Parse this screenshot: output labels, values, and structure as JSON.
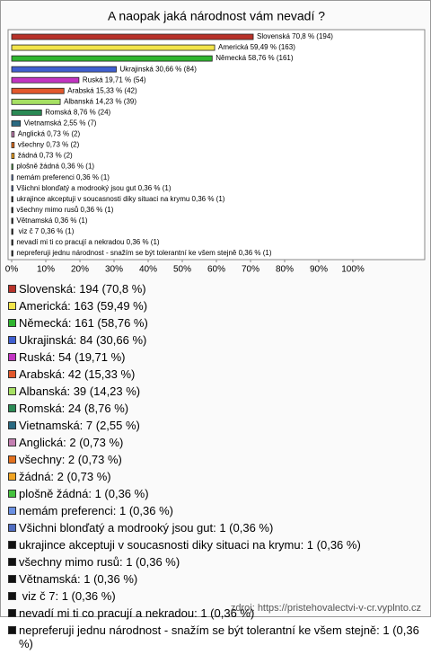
{
  "chart_data": {
    "type": "bar",
    "orientation": "horizontal",
    "title": "A naopak jaká národnost vám nevadí ?",
    "categories": [
      "Slovenská",
      "Americká",
      "Německá",
      "Ukrajinská",
      "Ruská",
      "Arabská",
      "Albanská",
      "Romská",
      "Vietnamská",
      "Anglická",
      "všechny",
      "žádná",
      "plošně žádná",
      "nemám preferenci",
      "Všichni blonďatý a modrooký jsou gut",
      "ukrajince akceptuji v soucasnosti diky situaci na krymu",
      "všechny mimo rusů",
      "Větnamská",
      " viz č 7",
      "nevadí mi ti co pracují a nekradou",
      "nepreferuji jednu národnost - snažím se být tolerantní ke všem stejně"
    ],
    "values": [
      70.8,
      59.49,
      58.76,
      30.66,
      19.71,
      15.33,
      14.23,
      8.76,
      2.55,
      0.73,
      0.73,
      0.73,
      0.36,
      0.36,
      0.36,
      0.36,
      0.36,
      0.36,
      0.36,
      0.36,
      0.36
    ],
    "value_labels": [
      "Slovenská 70,8 % (194)",
      "Americká 59,49 % (163)",
      "Německá 58,76 % (161)",
      "Ukrajinská 30,66 % (84)",
      "Ruská 19,71 % (54)",
      "Arabská 15,33 % (42)",
      "Albanská 14,23 % (39)",
      "Romská 8,76 % (24)",
      "Vietnamská 2,55 % (7)",
      "Anglická 0,73 % (2)",
      "všechny 0,73 % (2)",
      "žádná 0,73 % (2)",
      "plošně žádná 0,36 % (1)",
      "nemám preferenci 0,36 % (1)",
      "Všichni blonďatý a modrooký jsou gut 0,36 % (1)",
      "ukrajince akceptuji v soucasnosti diky situaci na krymu 0,36 % (1)",
      "všechny mimo rusů 0,36 % (1)",
      "Větnamská 0,36 % (1)",
      " viz č 7 0,36 % (1)",
      "nevadí mi ti co pracují a nekradou 0,36 % (1)",
      "nepreferuji jednu národnost - snažím se být tolerantní ke všem stejně 0,36 % (1)"
    ],
    "legend_labels": [
      "Slovenská: 194 (70,8 %)",
      "Americká: 163 (59,49 %)",
      "Německá: 161 (58,76 %)",
      "Ukrajinská: 84 (30,66 %)",
      "Ruská: 54 (19,71 %)",
      "Arabská: 42 (15,33 %)",
      "Albanská: 39 (14,23 %)",
      "Romská: 24 (8,76 %)",
      "Vietnamská: 7 (2,55 %)",
      "Anglická: 2 (0,73 %)",
      "všechny: 2 (0,73 %)",
      "žádná: 2 (0,73 %)",
      "plošně žádná: 1 (0,36 %)",
      "nemám preferenci: 1 (0,36 %)",
      "Všichni blonďatý a modrooký jsou gut: 1 (0,36 %)",
      "ukrajince akceptuji v soucasnosti diky situaci na krymu: 1 (0,36 %)",
      "všechny mimo rusů: 1 (0,36 %)",
      "Větnamská: 1 (0,36 %)",
      " viz č 7: 1 (0,36 %)",
      "nevadí mi ti co pracují a nekradou: 1 (0,36 %)",
      "nepreferuji jednu národnost - snažím se být tolerantní ke všem stejně: 1 (0,36 %)"
    ],
    "colors": [
      "#b8322a",
      "#f2e44a",
      "#2fb52f",
      "#3f5fd0",
      "#c234c2",
      "#e2582c",
      "#a6e063",
      "#2b8a55",
      "#2a6a82",
      "#c47fb2",
      "#e3701e",
      "#f0a424",
      "#46c23f",
      "#6a90e3",
      "#4f6cc0",
      "#111111",
      "#111111",
      "#111111",
      "#111111",
      "#111111",
      "#111111"
    ],
    "xlim": [
      0,
      100
    ],
    "xticks": [
      {
        "value": 0,
        "label": "0%"
      },
      {
        "value": 10,
        "label": "10%"
      },
      {
        "value": 20,
        "label": "20%"
      },
      {
        "value": 30,
        "label": "30%"
      },
      {
        "value": 40,
        "label": "40%"
      },
      {
        "value": 50,
        "label": "50%"
      },
      {
        "value": 60,
        "label": "60%"
      },
      {
        "value": 70,
        "label": "70%"
      },
      {
        "value": 80,
        "label": "80%"
      },
      {
        "value": 90,
        "label": "90%"
      },
      {
        "value": 100,
        "label": "100%"
      }
    ],
    "source": "zdroj: https://pristehovalectvi-v-cr.vyplnto.cz"
  }
}
